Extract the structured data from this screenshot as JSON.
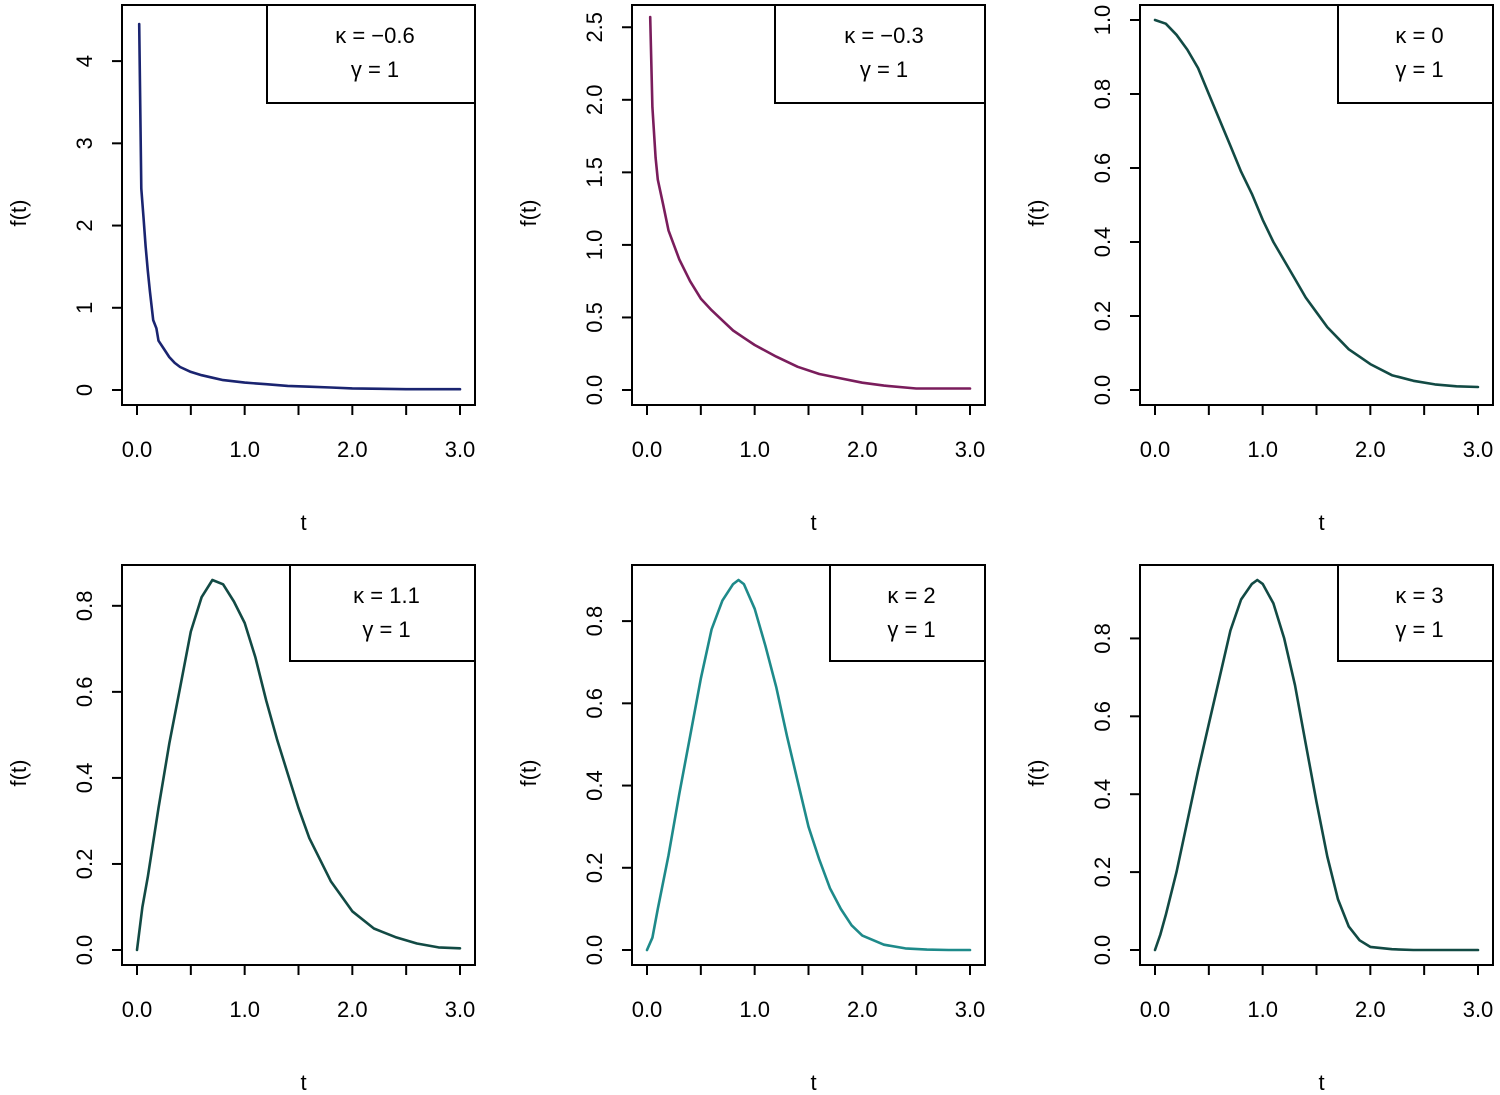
{
  "figure": {
    "background": "#ffffff"
  },
  "chart_data": [
    {
      "type": "line",
      "xlabel": "t",
      "ylabel": "f(t)",
      "xlim": [
        0,
        3
      ],
      "ylim": [
        0,
        4.5
      ],
      "xticks": [
        0,
        0.5,
        1,
        1.5,
        2,
        2.5,
        3
      ],
      "xtick_labels": [
        "0.0",
        "1.0",
        "2.0",
        "3.0"
      ],
      "xtick_label_values": [
        0,
        1,
        2,
        3
      ],
      "yticks": [
        0,
        1,
        2,
        3,
        4
      ],
      "ytick_labels": [
        "0",
        "1",
        "2",
        "3",
        "4"
      ],
      "legend": {
        "placement": "top-right",
        "line1": "κ = −0.6",
        "line2": "γ = 1"
      },
      "color": "#1a2470",
      "series": [
        {
          "name": "κ = −0.6, γ = 1",
          "x": [
            0.02,
            0.04,
            0.06,
            0.08,
            0.1,
            0.12,
            0.15,
            0.18,
            0.2,
            0.25,
            0.3,
            0.35,
            0.4,
            0.5,
            0.6,
            0.7,
            0.8,
            1.0,
            1.2,
            1.4,
            1.6,
            1.8,
            2.0,
            2.5,
            3.0
          ],
          "y": [
            4.45,
            2.45,
            2.1,
            1.75,
            1.45,
            1.2,
            0.85,
            0.75,
            0.6,
            0.5,
            0.4,
            0.33,
            0.28,
            0.22,
            0.18,
            0.15,
            0.12,
            0.09,
            0.07,
            0.05,
            0.04,
            0.03,
            0.02,
            0.01,
            0.01
          ]
        }
      ]
    },
    {
      "type": "line",
      "xlabel": "t",
      "ylabel": "f(t)",
      "xlim": [
        0,
        3
      ],
      "ylim": [
        0,
        2.55
      ],
      "xticks": [
        0,
        0.5,
        1,
        1.5,
        2,
        2.5,
        3
      ],
      "xtick_labels": [
        "0.0",
        "1.0",
        "2.0",
        "3.0"
      ],
      "xtick_label_values": [
        0,
        1,
        2,
        3
      ],
      "yticks": [
        0,
        0.5,
        1,
        1.5,
        2,
        2.5
      ],
      "ytick_labels": [
        "0.0",
        "0.5",
        "1.0",
        "1.5",
        "2.0",
        "2.5"
      ],
      "legend": {
        "placement": "top-right",
        "line1": "κ = −0.3",
        "line2": "γ = 1"
      },
      "color": "#7a1d5c",
      "series": [
        {
          "name": "κ = −0.3, γ = 1",
          "x": [
            0.03,
            0.05,
            0.08,
            0.1,
            0.15,
            0.2,
            0.25,
            0.3,
            0.4,
            0.5,
            0.6,
            0.7,
            0.8,
            0.9,
            1.0,
            1.2,
            1.4,
            1.6,
            1.8,
            2.0,
            2.2,
            2.5,
            3.0
          ],
          "y": [
            2.57,
            1.95,
            1.6,
            1.45,
            1.28,
            1.1,
            1.0,
            0.9,
            0.75,
            0.63,
            0.55,
            0.48,
            0.41,
            0.36,
            0.31,
            0.23,
            0.16,
            0.11,
            0.08,
            0.05,
            0.03,
            0.01,
            0.01
          ]
        }
      ]
    },
    {
      "type": "line",
      "xlabel": "t",
      "ylabel": "f(t)",
      "xlim": [
        0,
        3
      ],
      "ylim": [
        0,
        1.0
      ],
      "xticks": [
        0,
        0.5,
        1,
        1.5,
        2,
        2.5,
        3
      ],
      "xtick_labels": [
        "0.0",
        "1.0",
        "2.0",
        "3.0"
      ],
      "xtick_label_values": [
        0,
        1,
        2,
        3
      ],
      "yticks": [
        0,
        0.2,
        0.4,
        0.6,
        0.8,
        1.0
      ],
      "ytick_labels": [
        "0.0",
        "0.2",
        "0.4",
        "0.6",
        "0.8",
        "1.0"
      ],
      "legend": {
        "placement": "top-right",
        "line1": "κ = 0",
        "line2": "γ = 1"
      },
      "color": "#124a44",
      "series": [
        {
          "name": "κ = 0, γ = 1",
          "x": [
            0,
            0.1,
            0.2,
            0.3,
            0.4,
            0.5,
            0.6,
            0.7,
            0.8,
            0.9,
            1.0,
            1.1,
            1.2,
            1.3,
            1.4,
            1.5,
            1.6,
            1.7,
            1.8,
            1.9,
            2.0,
            2.2,
            2.4,
            2.6,
            2.8,
            3.0
          ],
          "y": [
            1.0,
            0.99,
            0.96,
            0.92,
            0.87,
            0.8,
            0.73,
            0.66,
            0.59,
            0.53,
            0.46,
            0.4,
            0.35,
            0.3,
            0.25,
            0.21,
            0.17,
            0.14,
            0.11,
            0.09,
            0.07,
            0.04,
            0.025,
            0.015,
            0.01,
            0.008
          ]
        }
      ]
    },
    {
      "type": "line",
      "xlabel": "t",
      "ylabel": "f(t)",
      "xlim": [
        0,
        3
      ],
      "ylim": [
        0,
        0.86
      ],
      "xticks": [
        0,
        0.5,
        1,
        1.5,
        2,
        2.5,
        3
      ],
      "xtick_labels": [
        "0.0",
        "1.0",
        "2.0",
        "3.0"
      ],
      "xtick_label_values": [
        0,
        1,
        2,
        3
      ],
      "yticks": [
        0,
        0.2,
        0.4,
        0.6,
        0.8
      ],
      "ytick_labels": [
        "0.0",
        "0.2",
        "0.4",
        "0.6",
        "0.8"
      ],
      "legend": {
        "placement": "top-right",
        "line1": "κ = 1.1",
        "line2": "γ = 1"
      },
      "color": "#124a44",
      "series": [
        {
          "name": "κ = 1.1, γ = 1",
          "x": [
            0,
            0.05,
            0.1,
            0.2,
            0.3,
            0.4,
            0.5,
            0.6,
            0.7,
            0.8,
            0.9,
            1.0,
            1.1,
            1.2,
            1.3,
            1.4,
            1.5,
            1.6,
            1.8,
            2.0,
            2.2,
            2.4,
            2.6,
            2.8,
            3.0
          ],
          "y": [
            0.0,
            0.1,
            0.17,
            0.33,
            0.48,
            0.61,
            0.74,
            0.82,
            0.86,
            0.85,
            0.81,
            0.76,
            0.68,
            0.58,
            0.49,
            0.41,
            0.33,
            0.26,
            0.16,
            0.09,
            0.05,
            0.03,
            0.015,
            0.006,
            0.004
          ]
        }
      ]
    },
    {
      "type": "line",
      "xlabel": "t",
      "ylabel": "f(t)",
      "xlim": [
        0,
        3
      ],
      "ylim": [
        0,
        0.9
      ],
      "xticks": [
        0,
        0.5,
        1,
        1.5,
        2,
        2.5,
        3
      ],
      "xtick_labels": [
        "0.0",
        "1.0",
        "2.0",
        "3.0"
      ],
      "xtick_label_values": [
        0,
        1,
        2,
        3
      ],
      "yticks": [
        0,
        0.2,
        0.4,
        0.6,
        0.8
      ],
      "ytick_labels": [
        "0.0",
        "0.2",
        "0.4",
        "0.6",
        "0.8"
      ],
      "legend": {
        "placement": "top-right",
        "line1": "κ = 2",
        "line2": "γ = 1"
      },
      "color": "#1e8a8a",
      "series": [
        {
          "name": "κ = 2, γ = 1",
          "x": [
            0,
            0.05,
            0.1,
            0.2,
            0.3,
            0.4,
            0.5,
            0.6,
            0.7,
            0.8,
            0.85,
            0.9,
            1.0,
            1.1,
            1.2,
            1.3,
            1.4,
            1.5,
            1.6,
            1.7,
            1.8,
            1.9,
            2.0,
            2.2,
            2.4,
            2.6,
            2.8,
            3.0
          ],
          "y": [
            0.0,
            0.03,
            0.1,
            0.23,
            0.38,
            0.52,
            0.66,
            0.78,
            0.85,
            0.89,
            0.9,
            0.89,
            0.83,
            0.74,
            0.64,
            0.52,
            0.41,
            0.3,
            0.22,
            0.15,
            0.1,
            0.06,
            0.035,
            0.013,
            0.004,
            0.001,
            0.0,
            0.0
          ]
        }
      ]
    },
    {
      "type": "line",
      "xlabel": "t",
      "ylabel": "f(t)",
      "xlim": [
        0,
        3
      ],
      "ylim": [
        0,
        0.95
      ],
      "xticks": [
        0,
        0.5,
        1,
        1.5,
        2,
        2.5,
        3
      ],
      "xtick_labels": [
        "0.0",
        "1.0",
        "2.0",
        "3.0"
      ],
      "xtick_label_values": [
        0,
        1,
        2,
        3
      ],
      "yticks": [
        0,
        0.2,
        0.4,
        0.6,
        0.8
      ],
      "ytick_labels": [
        "0.0",
        "0.2",
        "0.4",
        "0.6",
        "0.8"
      ],
      "legend": {
        "placement": "top-right",
        "line1": "κ = 3",
        "line2": "γ = 1"
      },
      "color": "#124a44",
      "series": [
        {
          "name": "κ = 3, γ = 1",
          "x": [
            0,
            0.05,
            0.1,
            0.2,
            0.3,
            0.4,
            0.5,
            0.6,
            0.7,
            0.8,
            0.9,
            0.95,
            1.0,
            1.1,
            1.2,
            1.3,
            1.4,
            1.5,
            1.6,
            1.7,
            1.8,
            1.9,
            2.0,
            2.2,
            2.4,
            2.6,
            2.8,
            3.0
          ],
          "y": [
            0.0,
            0.04,
            0.09,
            0.2,
            0.33,
            0.46,
            0.58,
            0.7,
            0.82,
            0.9,
            0.94,
            0.95,
            0.94,
            0.89,
            0.8,
            0.68,
            0.53,
            0.38,
            0.24,
            0.13,
            0.06,
            0.025,
            0.008,
            0.002,
            0.0,
            0.0,
            0.0,
            0.0
          ]
        }
      ]
    }
  ]
}
